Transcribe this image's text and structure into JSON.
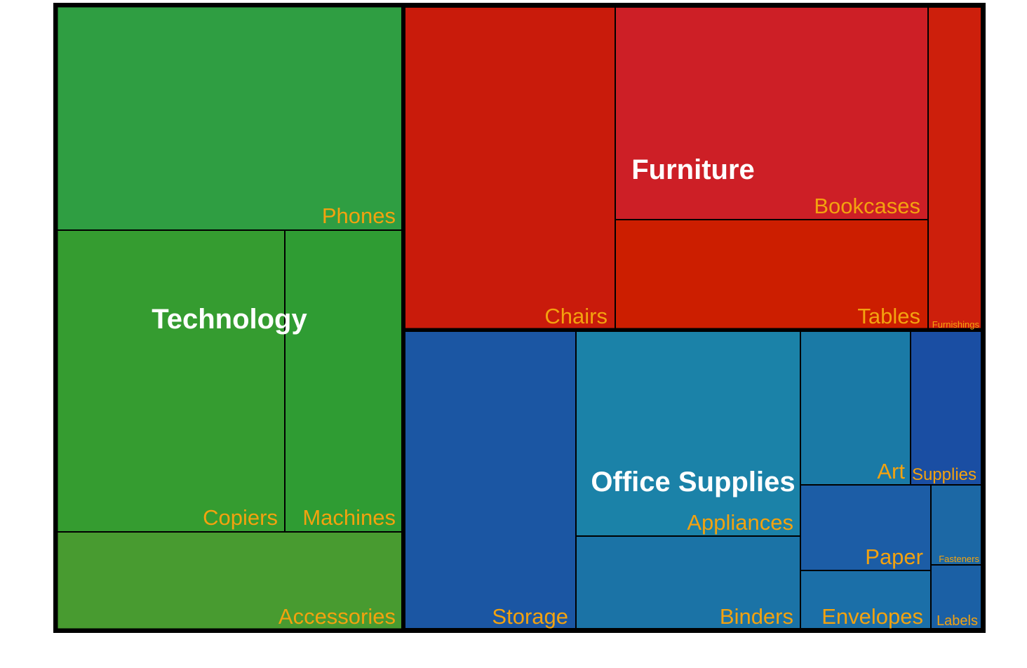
{
  "chart_data": {
    "type": "treemap",
    "label_color": "#f3a20f",
    "group_label_color": "#ffffff",
    "border_color": "#000000",
    "groups": [
      {
        "name": "Technology",
        "color": "#2e9b3f",
        "items": [
          {
            "name": "Phones",
            "value": 330000,
            "color": "#2f9e42"
          },
          {
            "name": "Copiers",
            "value": 222000,
            "color": "#359c30"
          },
          {
            "name": "Machines",
            "value": 113000,
            "color": "#2f9c33"
          },
          {
            "name": "Accessories",
            "value": 140000,
            "color": "#489b30"
          }
        ]
      },
      {
        "name": "Furniture",
        "color": "#c81c10",
        "items": [
          {
            "name": "Chairs",
            "value": 266000,
            "color": "#c91b0b"
          },
          {
            "name": "Bookcases",
            "value": 255000,
            "color": "#cd1f26"
          },
          {
            "name": "Tables",
            "value": 131000,
            "color": "#cc1e00"
          },
          {
            "name": "Furnishings",
            "value": 66000,
            "color": "#cd1f0c"
          }
        ]
      },
      {
        "name": "Office Supplies",
        "color": "#1a6fa6",
        "items": [
          {
            "name": "Storage",
            "value": 199000,
            "color": "#1b56a3"
          },
          {
            "name": "Appliances",
            "value": 170000,
            "color": "#1b82a8"
          },
          {
            "name": "Binders",
            "value": 77000,
            "color": "#1b73a6"
          },
          {
            "name": "Art",
            "value": 50000,
            "color": "#1a7aa6"
          },
          {
            "name": "Supplies",
            "value": 51000,
            "color": "#1a4ea3"
          },
          {
            "name": "Paper",
            "value": 38000,
            "color": "#1c5da6"
          },
          {
            "name": "Envelopes",
            "value": 27000,
            "color": "#1b6fa8"
          },
          {
            "name": "Fasteners",
            "value": 17000,
            "color": "#1c68a5"
          },
          {
            "name": "Labels",
            "value": 13000,
            "color": "#1b60a5"
          }
        ]
      }
    ]
  }
}
